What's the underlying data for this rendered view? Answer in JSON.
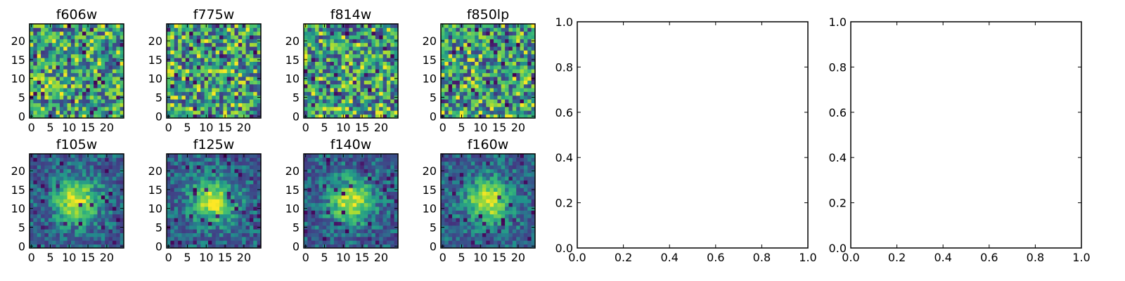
{
  "chart_data": [
    {
      "type": "heatmap",
      "title": "f606w",
      "xticks": [
        0,
        5,
        10,
        15,
        20
      ],
      "yticks": [
        0,
        5,
        10,
        15,
        20
      ],
      "xlim": [
        -0.5,
        24.5
      ],
      "ylim": [
        -0.5,
        24.5
      ],
      "grid": false,
      "colormap": "viridis",
      "size": [
        25,
        25
      ],
      "pattern": "noise",
      "seed": 1
    },
    {
      "type": "heatmap",
      "title": "f775w",
      "xticks": [
        0,
        5,
        10,
        15,
        20
      ],
      "yticks": [
        0,
        5,
        10,
        15,
        20
      ],
      "xlim": [
        -0.5,
        24.5
      ],
      "ylim": [
        -0.5,
        24.5
      ],
      "grid": false,
      "colormap": "viridis",
      "size": [
        25,
        25
      ],
      "pattern": "noise",
      "seed": 2
    },
    {
      "type": "heatmap",
      "title": "f814w",
      "xticks": [
        0,
        5,
        10,
        15,
        20
      ],
      "yticks": [
        0,
        5,
        10,
        15,
        20
      ],
      "xlim": [
        -0.5,
        24.5
      ],
      "ylim": [
        -0.5,
        24.5
      ],
      "grid": false,
      "colormap": "viridis",
      "size": [
        25,
        25
      ],
      "pattern": "noise",
      "seed": 3
    },
    {
      "type": "heatmap",
      "title": "f850lp",
      "xticks": [
        0,
        5,
        10,
        15,
        20
      ],
      "yticks": [
        0,
        5,
        10,
        15,
        20
      ],
      "xlim": [
        -0.5,
        24.5
      ],
      "ylim": [
        -0.5,
        24.5
      ],
      "grid": false,
      "colormap": "viridis",
      "size": [
        25,
        25
      ],
      "pattern": "noise",
      "seed": 4
    },
    {
      "type": "heatmap",
      "title": "f105w",
      "xticks": [
        0,
        5,
        10,
        15,
        20
      ],
      "yticks": [
        0,
        5,
        10,
        15,
        20
      ],
      "xlim": [
        -0.5,
        24.5
      ],
      "ylim": [
        -0.5,
        24.5
      ],
      "grid": false,
      "colormap": "viridis",
      "size": [
        25,
        25
      ],
      "pattern": "source",
      "center": [
        12,
        12
      ],
      "seed": 5
    },
    {
      "type": "heatmap",
      "title": "f125w",
      "xticks": [
        0,
        5,
        10,
        15,
        20
      ],
      "yticks": [
        0,
        5,
        10,
        15,
        20
      ],
      "xlim": [
        -0.5,
        24.5
      ],
      "ylim": [
        -0.5,
        24.5
      ],
      "grid": false,
      "colormap": "viridis",
      "size": [
        25,
        25
      ],
      "pattern": "source",
      "center": [
        12,
        12
      ],
      "seed": 6
    },
    {
      "type": "heatmap",
      "title": "f140w",
      "xticks": [
        0,
        5,
        10,
        15,
        20
      ],
      "yticks": [
        0,
        5,
        10,
        15,
        20
      ],
      "xlim": [
        -0.5,
        24.5
      ],
      "ylim": [
        -0.5,
        24.5
      ],
      "grid": false,
      "colormap": "viridis",
      "size": [
        25,
        25
      ],
      "pattern": "source",
      "center": [
        12,
        12
      ],
      "seed": 7
    },
    {
      "type": "heatmap",
      "title": "f160w",
      "xticks": [
        0,
        5,
        10,
        15,
        20
      ],
      "yticks": [
        0,
        5,
        10,
        15,
        20
      ],
      "xlim": [
        -0.5,
        24.5
      ],
      "ylim": [
        -0.5,
        24.5
      ],
      "grid": false,
      "colormap": "viridis",
      "size": [
        25,
        25
      ],
      "pattern": "source",
      "center": [
        12,
        12
      ],
      "seed": 8
    },
    {
      "type": "scatter",
      "title": "",
      "xlabel": "",
      "ylabel": "",
      "xlim": [
        0,
        1
      ],
      "ylim": [
        0,
        1
      ],
      "xticks": [
        0.0,
        0.2,
        0.4,
        0.6,
        0.8,
        1.0
      ],
      "yticks": [
        0.0,
        0.2,
        0.4,
        0.6,
        0.8,
        1.0
      ],
      "series": [],
      "grid": false
    },
    {
      "type": "scatter",
      "title": "",
      "xlabel": "",
      "ylabel": "",
      "xlim": [
        0,
        1
      ],
      "ylim": [
        0,
        1
      ],
      "xticks": [
        0.0,
        0.2,
        0.4,
        0.6,
        0.8,
        1.0
      ],
      "yticks": [
        0.0,
        0.2,
        0.4,
        0.6,
        0.8,
        1.0
      ],
      "series": [],
      "grid": false
    }
  ]
}
